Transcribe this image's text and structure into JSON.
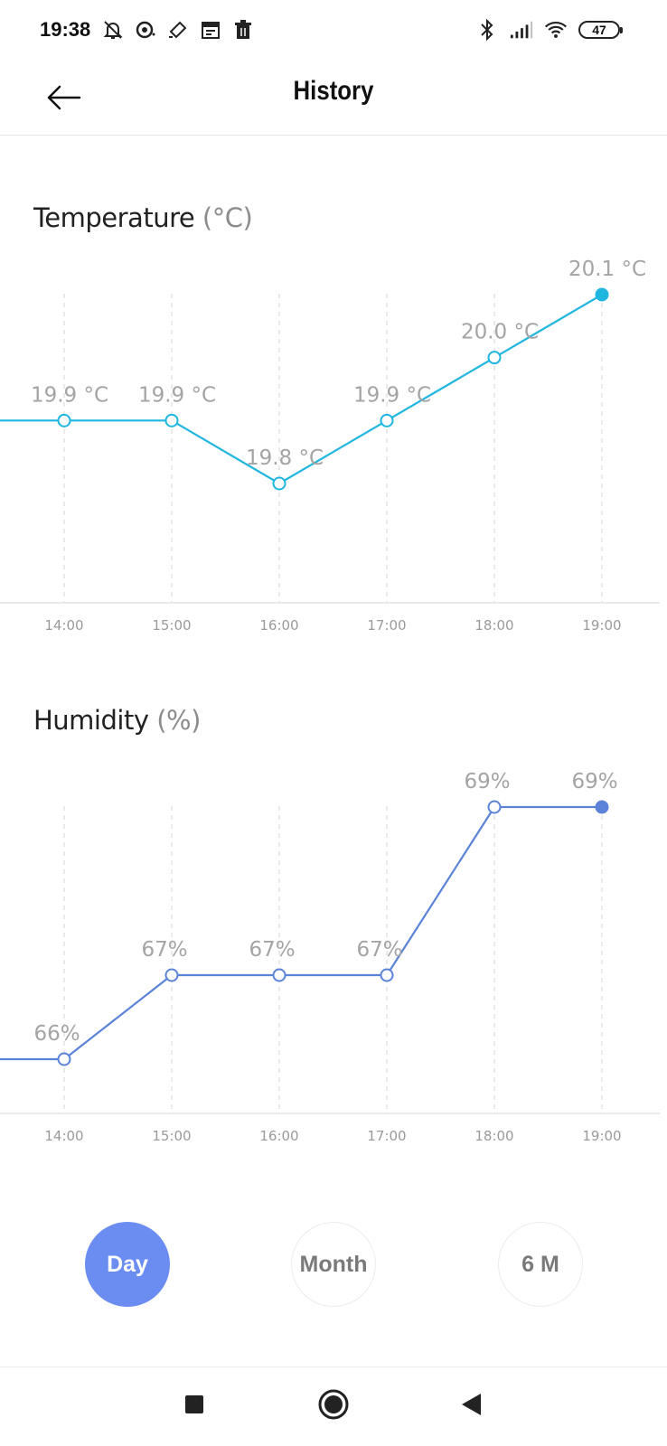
{
  "status_bar": {
    "time": "19:38",
    "left_icons": [
      "bell-off-icon",
      "record-icon",
      "cast-icon",
      "calendar-icon",
      "trash-icon"
    ],
    "right_icons": [
      "bluetooth-icon",
      "signal-icon",
      "wifi-icon"
    ],
    "battery": "47"
  },
  "header": {
    "title": "History",
    "back_icon": "arrow-left-icon"
  },
  "temperature": {
    "title": "Temperature",
    "unit": "(°C)"
  },
  "humidity": {
    "title": "Humidity",
    "unit": "(%)"
  },
  "chart_data": [
    {
      "type": "line",
      "title": "Temperature (°C)",
      "x": [
        "14:00",
        "15:00",
        "16:00",
        "17:00",
        "18:00",
        "19:00"
      ],
      "series": [
        {
          "values": [
            19.9,
            19.9,
            19.8,
            19.9,
            20.0,
            20.1
          ],
          "labels": [
            "19.9 °C",
            "19.9 °C",
            "19.8 °C",
            "19.9 °C",
            "20.0 °C",
            "20.1 °C"
          ],
          "leading_value": 19.9
        }
      ],
      "color": "#1fb6e0",
      "grid": "vertical-dashed",
      "highlighted_point": "last"
    },
    {
      "type": "line",
      "title": "Humidity (%)",
      "x": [
        "14:00",
        "15:00",
        "16:00",
        "17:00",
        "18:00",
        "19:00"
      ],
      "series": [
        {
          "values": [
            66,
            67,
            67,
            67,
            69,
            69
          ],
          "labels": [
            "66%",
            "67%",
            "67%",
            "67%",
            "69%",
            "69%"
          ],
          "leading_value": 66
        }
      ],
      "color": "#5b83d8",
      "grid": "vertical-dashed",
      "highlighted_point": "last"
    }
  ],
  "period_selector": {
    "options": [
      "Day",
      "Month",
      "6 M"
    ],
    "selected": "Day",
    "active_color": "#6b8df2"
  },
  "nav_bar": {
    "icons": [
      "recents-square-icon",
      "home-circle-icon",
      "back-triangle-icon"
    ]
  }
}
